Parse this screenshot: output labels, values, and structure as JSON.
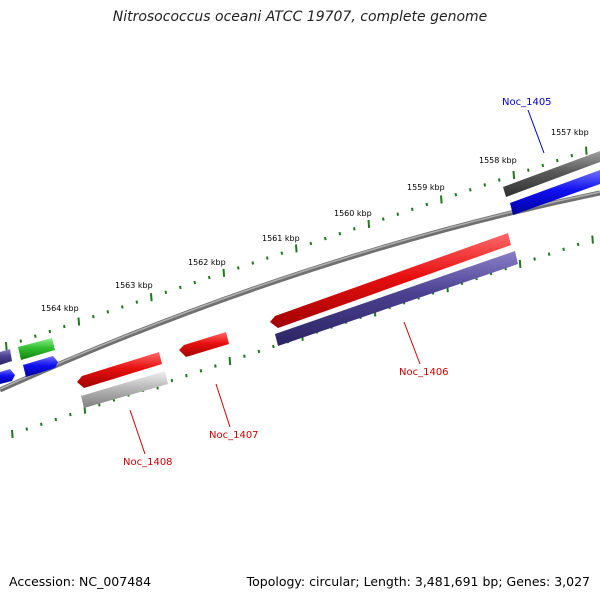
{
  "title": "Nitrosococcus oceani ATCC 19707, complete genome",
  "footer": {
    "accession": "Accession: NC_007484",
    "summary": "Topology: circular; Length: 3,481,691 bp; Genes: 3,027"
  },
  "ruler": {
    "labels": [
      "1557 kbp",
      "1558 kbp",
      "1559 kbp",
      "1560 kbp",
      "1561 kbp",
      "1562 kbp",
      "1563 kbp",
      "1564 kbp"
    ]
  },
  "gene_labels": [
    {
      "name": "Noc_1405",
      "color": "#0000cc"
    },
    {
      "name": "Noc_1406",
      "color": "#cc0000"
    },
    {
      "name": "Noc_1407",
      "color": "#cc0000"
    },
    {
      "name": "Noc_1408",
      "color": "#cc0000"
    }
  ],
  "colors": {
    "backbone": "#8c8c8c",
    "ticks": "#1a7a1a",
    "red": "#e01010",
    "blue": "#1010e8",
    "purple": "#4a4090",
    "green": "#30c030",
    "dark_gray": "#5a5a5a",
    "light_gray": "#b8b8b8"
  }
}
